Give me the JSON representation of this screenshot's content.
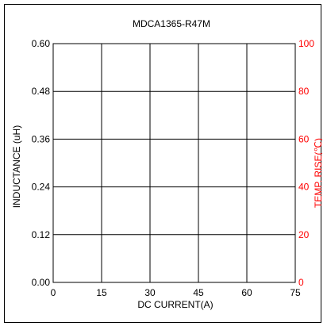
{
  "chart_data": {
    "type": "line",
    "title": "MDCA1365-R47M",
    "xlabel": "DC CURRENT(A)",
    "ylabel_left": "INDUCTANCE (uH)",
    "ylabel_right": "TEMP. RISE(℃)",
    "x_ticks": [
      "0",
      "15",
      "30",
      "45",
      "60",
      "75"
    ],
    "y_left_ticks": [
      "0.00",
      "0.12",
      "0.24",
      "0.36",
      "0.48",
      "0.60"
    ],
    "y_right_ticks": [
      "0",
      "20",
      "40",
      "60",
      "80",
      "100"
    ],
    "xlim": [
      0,
      75
    ],
    "ylim_left": [
      0,
      0.6
    ],
    "ylim_right": [
      0,
      100
    ],
    "grid": true,
    "series": [],
    "colors": {
      "left_axis": "#000000",
      "right_axis": "#ff0000",
      "grid": "#000000"
    }
  }
}
